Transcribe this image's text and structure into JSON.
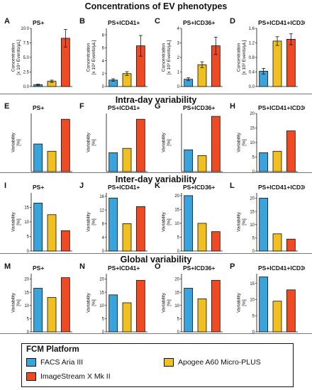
{
  "sections": [
    {
      "title": "Concentrations of EV phenotypes"
    },
    {
      "title": "Intra-day variability"
    },
    {
      "title": "Inter-day variability"
    },
    {
      "title": "Global variability"
    }
  ],
  "legend": {
    "title": "FCM Platform",
    "items": [
      {
        "label": "FACS Aria III",
        "color": "#3ba3db"
      },
      {
        "label": "Apogee A60 Micro-PLUS",
        "color": "#f0c020"
      },
      {
        "label": "ImageStream X Mk II",
        "color": "#ee4a23"
      }
    ]
  },
  "chart_data": [
    {
      "type": "bar",
      "letter": "A",
      "title": "PS+",
      "ylabel": "Concentration [x 10⁴ Events/μL]",
      "ylim": [
        0,
        10
      ],
      "ticks": [
        0.0,
        2.5,
        5.0,
        7.5,
        10.0
      ],
      "tick_labels": [
        "0.0",
        "2.5",
        "5.0",
        "7.5",
        "10.0"
      ],
      "categories": [
        "FACS Aria III",
        "Apogee A60 Micro-PLUS",
        "ImageStream X Mk II"
      ],
      "values": [
        0.3,
        0.9,
        8.3
      ],
      "errors": [
        0.1,
        0.2,
        1.5
      ]
    },
    {
      "type": "bar",
      "letter": "B",
      "title": "PS+lCD41+",
      "ylabel": "Concentration [x 10³ Events/μL]",
      "ylim": [
        0,
        9
      ],
      "ticks": [
        0,
        2,
        4,
        6,
        8
      ],
      "tick_labels": [
        "0",
        "2",
        "4",
        "6",
        "8"
      ],
      "categories": [
        "FACS Aria III",
        "Apogee A60 Micro-PLUS",
        "ImageStream X Mk II"
      ],
      "values": [
        1.0,
        2.0,
        6.3
      ],
      "errors": [
        0.2,
        0.3,
        1.6
      ]
    },
    {
      "type": "bar",
      "letter": "C",
      "title": "PS+lCD36+",
      "ylabel": "Concentration [x 10³ Events/μL]",
      "ylim": [
        0,
        4
      ],
      "ticks": [
        0,
        1,
        2,
        3,
        4
      ],
      "tick_labels": [
        "0",
        "1",
        "2",
        "3",
        "4"
      ],
      "categories": [
        "FACS Aria III",
        "Apogee A60 Micro-PLUS",
        "ImageStream X Mk II"
      ],
      "values": [
        0.5,
        1.5,
        2.8
      ],
      "errors": [
        0.1,
        0.2,
        0.6
      ]
    },
    {
      "type": "bar",
      "letter": "D",
      "title": "PS+lCD41+lCD36+",
      "ylabel": "Concentration [x 10³ Events/μL]",
      "ylim": [
        0,
        1.6
      ],
      "ticks": [
        0.0,
        0.4,
        0.8,
        1.2,
        1.6
      ],
      "tick_labels": [
        "0.0",
        "0.4",
        "0.8",
        "1.2",
        "1.6"
      ],
      "categories": [
        "FACS Aria III",
        "Apogee A60 Micro-PLUS",
        "ImageStream X Mk II"
      ],
      "values": [
        0.42,
        1.25,
        1.3
      ],
      "errors": [
        0.08,
        0.12,
        0.15
      ]
    },
    {
      "type": "bar",
      "letter": "E",
      "title": "PS+",
      "ylabel": "Variability [%]",
      "ylim": [
        0,
        20
      ],
      "ticks": [],
      "tick_labels": [],
      "categories": [
        "FACS Aria III",
        "Apogee A60 Micro-PLUS",
        "ImageStream X Mk II"
      ],
      "values": [
        9.5,
        7,
        18
      ]
    },
    {
      "type": "bar",
      "letter": "F",
      "title": "PS+lCD41+",
      "ylabel": "Variability [%]",
      "ylim": [
        0,
        20
      ],
      "ticks": [],
      "tick_labels": [],
      "categories": [
        "FACS Aria III",
        "Apogee A60 Micro-PLUS",
        "ImageStream X Mk II"
      ],
      "values": [
        6.5,
        8,
        18
      ]
    },
    {
      "type": "bar",
      "letter": "G",
      "title": "PS+lCD36+",
      "ylabel": "Variability [%]",
      "ylim": [
        0,
        20
      ],
      "ticks": [],
      "tick_labels": [],
      "categories": [
        "FACS Aria III",
        "Apogee A60 Micro-PLUS",
        "ImageStream X Mk II"
      ],
      "values": [
        7.5,
        5.5,
        19
      ]
    },
    {
      "type": "bar",
      "letter": "H",
      "title": "PS+lCD41+lCD36+",
      "ylabel": "Variability [%]",
      "ylim": [
        0,
        20
      ],
      "ticks": [
        0,
        5,
        10,
        15,
        20
      ],
      "tick_labels": [
        "0",
        "5",
        "10",
        "15",
        "20"
      ],
      "categories": [
        "FACS Aria III",
        "Apogee A60 Micro-PLUS",
        "ImageStream X Mk II"
      ],
      "values": [
        6.5,
        7,
        14
      ]
    },
    {
      "type": "bar",
      "letter": "I",
      "title": "PS+",
      "ylabel": "Variability [%]",
      "ylim": [
        0,
        20
      ],
      "ticks": [
        0,
        5,
        10,
        15
      ],
      "tick_labels": [
        "0",
        "5",
        "10",
        "15"
      ],
      "categories": [
        "FACS Aria III",
        "Apogee A60 Micro-PLUS",
        "ImageStream X Mk II"
      ],
      "values": [
        16.5,
        12.5,
        7
      ]
    },
    {
      "type": "bar",
      "letter": "J",
      "title": "PS+lCD41+",
      "ylabel": "Variability [%]",
      "ylim": [
        0,
        17
      ],
      "ticks": [
        0,
        4,
        8,
        12,
        16
      ],
      "tick_labels": [
        "0",
        "4",
        "8",
        "12",
        "16"
      ],
      "categories": [
        "FACS Aria III",
        "Apogee A60 Micro-PLUS",
        "ImageStream X Mk II"
      ],
      "values": [
        15.5,
        8,
        13
      ]
    },
    {
      "type": "bar",
      "letter": "K",
      "title": "PS+lCD36+",
      "ylabel": "Variability [%]",
      "ylim": [
        0,
        21
      ],
      "ticks": [
        0,
        5,
        10,
        15,
        20
      ],
      "tick_labels": [
        "0",
        "5",
        "10",
        "15",
        "20"
      ],
      "categories": [
        "FACS Aria III",
        "Apogee A60 Micro-PLUS",
        "ImageStream X Mk II"
      ],
      "values": [
        20,
        10,
        7
      ]
    },
    {
      "type": "bar",
      "letter": "L",
      "title": "PS+lCD41+lCD36+",
      "ylabel": "Variability [%]",
      "ylim": [
        0,
        22
      ],
      "ticks": [
        0,
        5,
        10,
        15,
        20
      ],
      "tick_labels": [
        "0",
        "5",
        "10",
        "15",
        "20"
      ],
      "categories": [
        "FACS Aria III",
        "Apogee A60 Micro-PLUS",
        "ImageStream X Mk II"
      ],
      "values": [
        20,
        6.5,
        4.5
      ]
    },
    {
      "type": "bar",
      "letter": "M",
      "title": "PS+",
      "ylabel": "Variability [%]",
      "ylim": [
        0,
        22
      ],
      "ticks": [
        0,
        5,
        10,
        15,
        20
      ],
      "tick_labels": [
        "0",
        "5",
        "10",
        "15",
        "20"
      ],
      "categories": [
        "FACS Aria III",
        "Apogee A60 Micro-PLUS",
        "ImageStream X Mk II"
      ],
      "values": [
        16.5,
        13,
        20.5
      ]
    },
    {
      "type": "bar",
      "letter": "N",
      "title": "PS+lCD41+",
      "ylabel": "Variability [%]",
      "ylim": [
        0,
        22
      ],
      "ticks": [
        0,
        5,
        10,
        15,
        20
      ],
      "tick_labels": [
        "0",
        "5",
        "10",
        "15",
        "20"
      ],
      "categories": [
        "FACS Aria III",
        "Apogee A60 Micro-PLUS",
        "ImageStream X Mk II"
      ],
      "values": [
        14,
        11,
        19.5
      ]
    },
    {
      "type": "bar",
      "letter": "O",
      "title": "PS+lCD36+",
      "ylabel": "Variability [%]",
      "ylim": [
        0,
        22
      ],
      "ticks": [
        0,
        5,
        10,
        15,
        20
      ],
      "tick_labels": [
        "0",
        "5",
        "10",
        "15",
        "20"
      ],
      "categories": [
        "FACS Aria III",
        "Apogee A60 Micro-PLUS",
        "ImageStream X Mk II"
      ],
      "values": [
        16.5,
        12.5,
        19.5
      ]
    },
    {
      "type": "bar",
      "letter": "P",
      "title": "PS+lCD41+lCD36+",
      "ylabel": "Variability [%]",
      "ylim": [
        0,
        18
      ],
      "ticks": [
        0,
        5,
        10,
        15
      ],
      "tick_labels": [
        "0",
        "5",
        "10",
        "15"
      ],
      "categories": [
        "FACS Aria III",
        "Apogee A60 Micro-PLUS",
        "ImageStream X Mk II"
      ],
      "values": [
        17,
        9.5,
        13
      ]
    }
  ]
}
